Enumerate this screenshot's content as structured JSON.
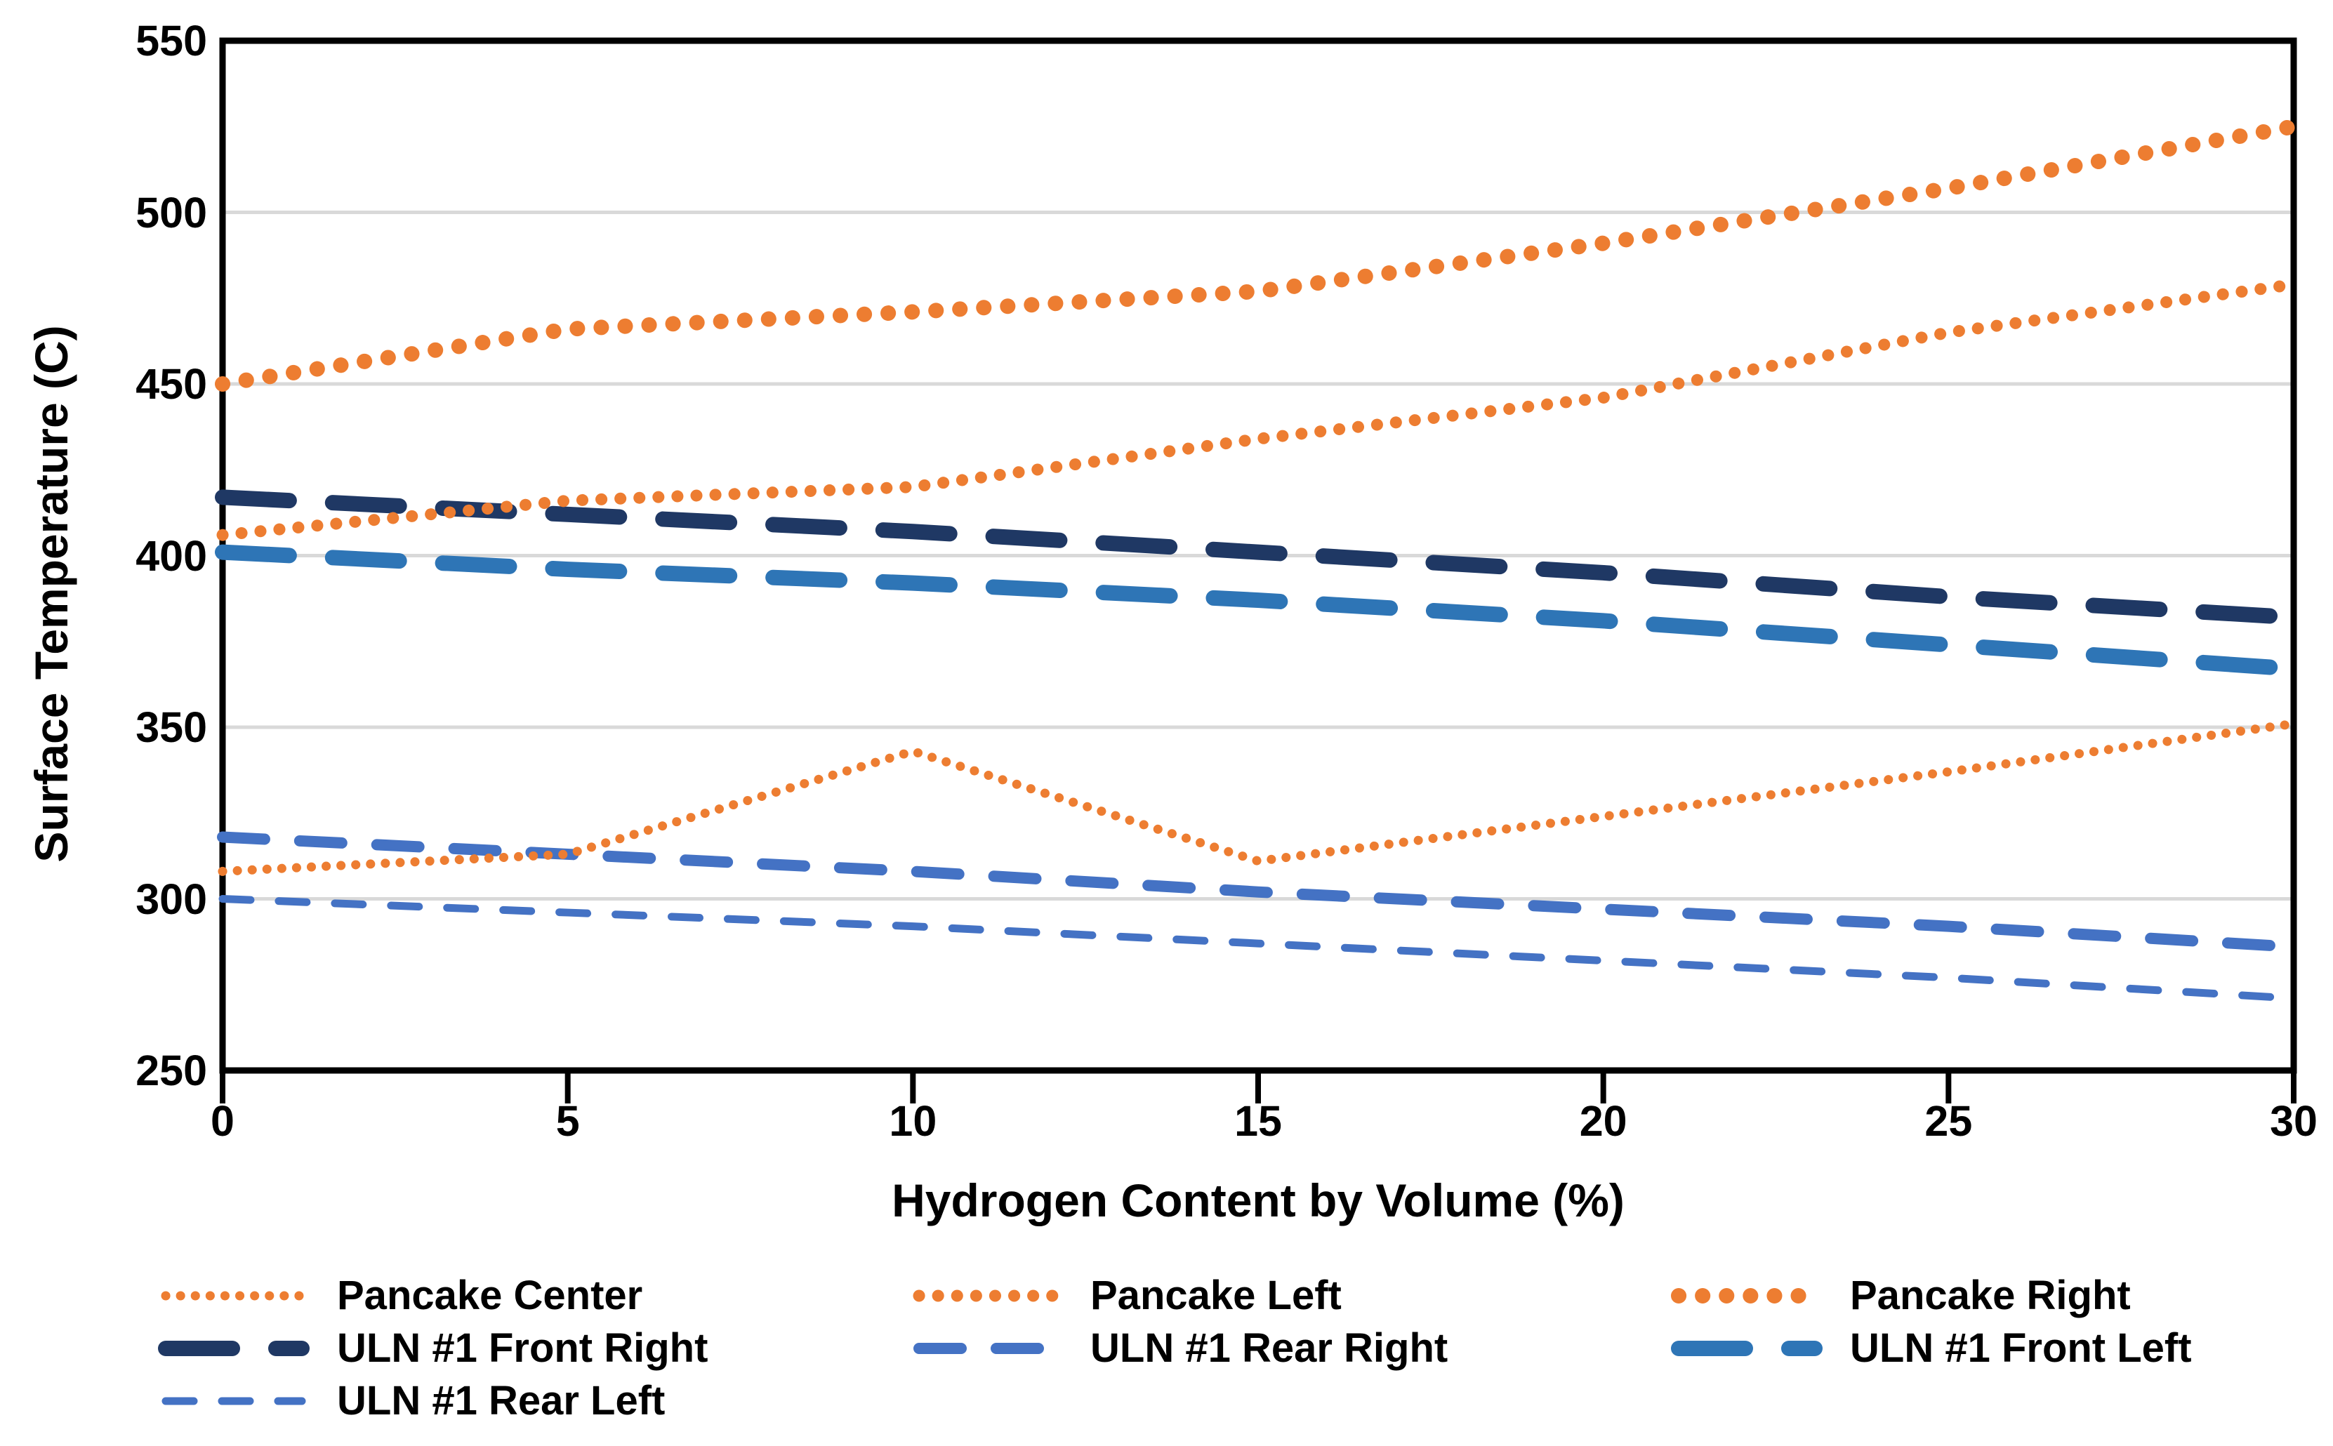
{
  "chart_data": {
    "type": "line",
    "title": "",
    "xlabel": "Hydrogen Content by Volume (%)",
    "ylabel": "Surface Temperature (C)",
    "x": [
      0,
      5,
      10,
      15,
      20,
      25,
      30
    ],
    "xlim": [
      0,
      30
    ],
    "ylim": [
      250,
      550
    ],
    "x_ticks": [
      0,
      5,
      10,
      15,
      20,
      25,
      30
    ],
    "y_ticks": [
      550,
      500,
      450,
      400,
      350,
      300,
      250
    ],
    "grid_values": [
      300,
      350,
      400,
      450,
      500
    ],
    "grid": "horizontal-only",
    "legend_position": "bottom",
    "series": [
      {
        "name": "Pancake Center",
        "color": "#ED7D31",
        "style": "dot-small",
        "values": [
          308,
          313,
          343,
          311,
          324,
          337,
          351
        ]
      },
      {
        "name": "Pancake Left",
        "color": "#ED7D31",
        "style": "dot-medium",
        "values": [
          406,
          416,
          420,
          434,
          446,
          465,
          479
        ]
      },
      {
        "name": "Pancake Right",
        "color": "#ED7D31",
        "style": "dot-large",
        "values": [
          450,
          466,
          471,
          477,
          491,
          507,
          525
        ]
      },
      {
        "name": "ULN #1 Front Right",
        "color": "#1F3864",
        "style": "dash-large",
        "values": [
          417,
          412,
          407,
          401,
          395,
          388,
          382
        ]
      },
      {
        "name": "ULN #1 Rear Right",
        "color": "#4472C4",
        "style": "dash-medium",
        "values": [
          318,
          313,
          308,
          302,
          297,
          292,
          286
        ]
      },
      {
        "name": "ULN #1 Front Left",
        "color": "#2E75B6",
        "style": "dash-large",
        "values": [
          401,
          396,
          392,
          387,
          381,
          374,
          367
        ]
      },
      {
        "name": "ULN #1 Rear Left",
        "color": "#4472C4",
        "style": "dash-small",
        "values": [
          300,
          296,
          292,
          287,
          282,
          277,
          271
        ]
      }
    ],
    "draw_order": [
      3,
      5,
      4,
      6,
      0,
      1,
      2
    ],
    "legend_columns": [
      [
        0,
        3,
        6
      ],
      [
        1,
        4
      ],
      [
        2,
        5
      ]
    ]
  },
  "colors": {
    "gridline": "#D9D9D9",
    "frame": "#000000",
    "background": "#FFFFFF"
  }
}
